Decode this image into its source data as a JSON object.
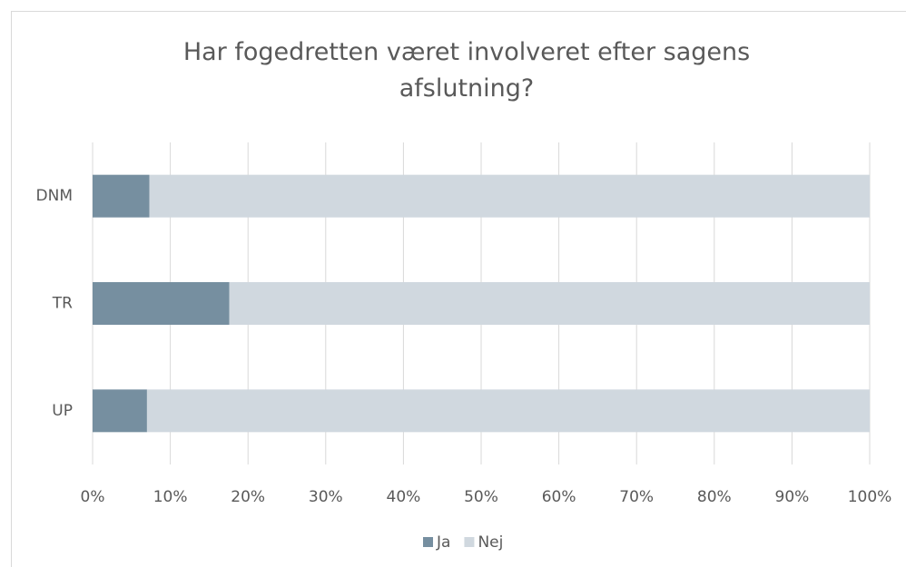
{
  "chart_data": {
    "type": "stacked_bar_horizontal",
    "title": "Har fogedretten været involveret efter sagens afslutning?",
    "categories": [
      "DNM",
      "TR",
      "UP"
    ],
    "series": [
      {
        "name": "Ja",
        "color": "#768fa0",
        "values": [
          7.3,
          17.6,
          7.0
        ]
      },
      {
        "name": "Nej",
        "color": "#d0d8df",
        "values": [
          92.7,
          82.4,
          93.0
        ]
      }
    ],
    "xlim": [
      0,
      100
    ],
    "xticks": [
      {
        "value": 0,
        "label": "0%"
      },
      {
        "value": 10,
        "label": "10%"
      },
      {
        "value": 20,
        "label": "20%"
      },
      {
        "value": 30,
        "label": "30%"
      },
      {
        "value": 40,
        "label": "40%"
      },
      {
        "value": 50,
        "label": "50%"
      },
      {
        "value": 60,
        "label": "60%"
      },
      {
        "value": 70,
        "label": "70%"
      },
      {
        "value": 80,
        "label": "80%"
      },
      {
        "value": 90,
        "label": "90%"
      },
      {
        "value": 100,
        "label": "100%"
      }
    ],
    "grid": true,
    "legend": "bottom"
  }
}
